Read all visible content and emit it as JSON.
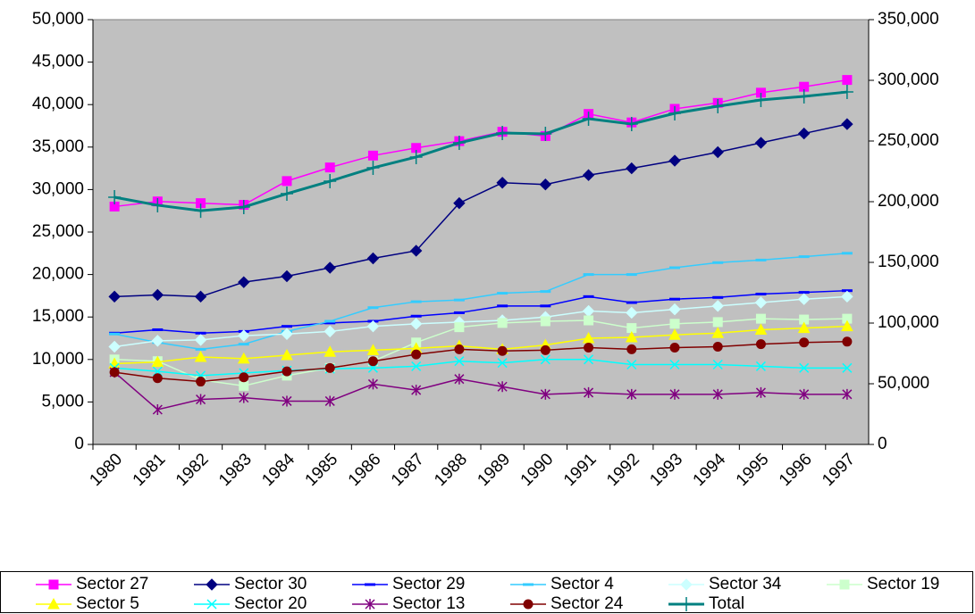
{
  "chart_data": {
    "type": "line",
    "categories": [
      "1980",
      "1981",
      "1982",
      "1983",
      "1984",
      "1985",
      "1986",
      "1987",
      "1988",
      "1989",
      "1990",
      "1991",
      "1992",
      "1993",
      "1994",
      "1995",
      "1996",
      "1997"
    ],
    "ylim": [
      0,
      50000
    ],
    "yticks": [
      0,
      {
        "value": 5000,
        "label": "5,000"
      },
      {
        "value": 10000,
        "label": "10,000"
      },
      {
        "value": 15000,
        "label": "15,000"
      },
      {
        "value": 20000,
        "label": "20,000"
      },
      {
        "value": 25000,
        "label": "25,000"
      },
      {
        "value": 30000,
        "label": "30,000"
      },
      {
        "value": 35000,
        "label": "35,000"
      },
      {
        "value": 40000,
        "label": "40,000"
      },
      {
        "value": 45000,
        "label": "45,000"
      },
      {
        "value": 50000,
        "label": "50,000"
      }
    ],
    "y2lim": [
      0,
      350000
    ],
    "y2ticks": [
      0,
      {
        "value": 50000,
        "label": "50,000"
      },
      {
        "value": 100000,
        "label": "100,000"
      },
      {
        "value": 150000,
        "label": "150,000"
      },
      {
        "value": 200000,
        "label": "200,000"
      },
      {
        "value": 250000,
        "label": "250,000"
      },
      {
        "value": 300000,
        "label": "300,000"
      },
      {
        "value": 350000,
        "label": "350,000"
      }
    ],
    "plot_background": "#c0c0c0",
    "series": [
      {
        "name": "Sector 27",
        "color": "#ff00ff",
        "marker": "square",
        "values": [
          28000,
          28600,
          28400,
          28200,
          31000,
          32600,
          34000,
          34900,
          35700,
          36800,
          36300,
          38900,
          37900,
          39500,
          40200,
          41400,
          42100,
          42900
        ]
      },
      {
        "name": "Sector 30",
        "color": "#000080",
        "marker": "diamond",
        "values": [
          17400,
          17600,
          17400,
          19100,
          19800,
          20800,
          21900,
          22800,
          28400,
          30800,
          30600,
          31700,
          32500,
          33400,
          34400,
          35500,
          36600,
          37700
        ]
      },
      {
        "name": "Sector 29",
        "color": "#0000ff",
        "marker": "dash",
        "values": [
          13100,
          13500,
          13100,
          13300,
          13900,
          14300,
          14500,
          15100,
          15500,
          16300,
          16300,
          17400,
          16700,
          17100,
          17300,
          17700,
          17900,
          18100
        ]
      },
      {
        "name": "Sector 4",
        "color": "#33ccff",
        "marker": "dash",
        "values": [
          13000,
          12000,
          11200,
          11800,
          13300,
          14500,
          16100,
          16800,
          17000,
          17800,
          18000,
          20000,
          20000,
          20800,
          21400,
          21700,
          22100,
          22500
        ]
      },
      {
        "name": "Sector 34",
        "color": "#ccffff",
        "marker": "diamond",
        "values": [
          11500,
          12200,
          12300,
          12800,
          13000,
          13300,
          13900,
          14200,
          14400,
          14600,
          15000,
          15700,
          15500,
          15900,
          16300,
          16700,
          17100,
          17400
        ]
      },
      {
        "name": "Sector 19",
        "color": "#ccffcc",
        "marker": "square",
        "values": [
          10000,
          9800,
          7600,
          6900,
          8100,
          9000,
          9800,
          12000,
          13800,
          14300,
          14500,
          14600,
          13700,
          14200,
          14400,
          14800,
          14700,
          14800
        ]
      },
      {
        "name": "Sector 5",
        "color": "#ffff00",
        "marker": "triangle",
        "values": [
          9500,
          9700,
          10300,
          10100,
          10500,
          10900,
          11100,
          11300,
          11600,
          11200,
          11700,
          12500,
          12600,
          12900,
          13100,
          13500,
          13700,
          13900
        ]
      },
      {
        "name": "Sector 20",
        "color": "#00ffff",
        "marker": "x",
        "values": [
          9000,
          8600,
          8100,
          8400,
          8700,
          8900,
          9000,
          9200,
          9800,
          9600,
          10000,
          10000,
          9400,
          9400,
          9400,
          9200,
          9000,
          9000
        ]
      },
      {
        "name": "Sector 13",
        "color": "#800080",
        "marker": "star",
        "values": [
          8500,
          4100,
          5300,
          5500,
          5100,
          5100,
          7100,
          6400,
          7700,
          6800,
          5900,
          6100,
          5900,
          5900,
          5900,
          6100,
          5900,
          5900
        ]
      },
      {
        "name": "Sector 24",
        "color": "#800000",
        "marker": "circle",
        "values": [
          8500,
          7800,
          7400,
          7900,
          8600,
          9000,
          9800,
          10600,
          11200,
          11000,
          11100,
          11400,
          11200,
          11400,
          11500,
          11800,
          12000,
          12100
        ]
      },
      {
        "name": "Total",
        "color": "#008080",
        "marker": "plus",
        "width": 3,
        "axis": "y2",
        "values": [
          203700,
          197100,
          192600,
          195600,
          206600,
          216900,
          227900,
          236800,
          248500,
          256600,
          255900,
          268400,
          264000,
          272800,
          278700,
          283800,
          286800,
          290400
        ]
      }
    ]
  }
}
